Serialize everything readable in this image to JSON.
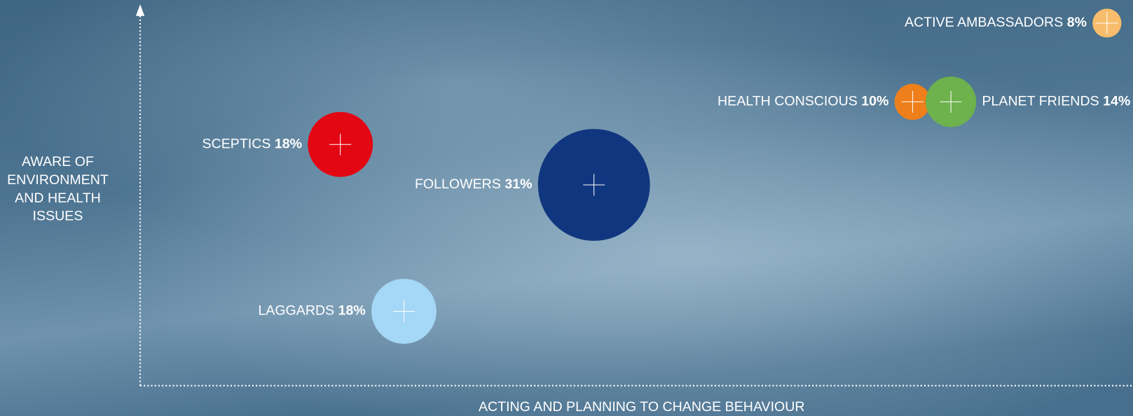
{
  "chart_data": {
    "type": "bubble",
    "x_label": "ACTING AND PLANNING TO CHANGE BEHAVIOUR",
    "y_label": "AWARE OF ENVIRONMENT AND HEALTH ISSUES",
    "categories": [
      "SCEPTICS",
      "FOLLOWERS",
      "LAGGARDS",
      "HEALTH CONSCIOUS",
      "PLANET FRIENDS",
      "ACTIVE AMBASSADORS"
    ],
    "values": [
      18,
      31,
      18,
      10,
      14,
      8
    ],
    "value_labels": [
      "18%",
      "31%",
      "18%",
      "10%",
      "14%",
      "8%"
    ],
    "colors": [
      "#e30613",
      "#10367f",
      "#a5d7f6",
      "#ee7f1b",
      "#6db24d",
      "#f8bd6c"
    ]
  }
}
